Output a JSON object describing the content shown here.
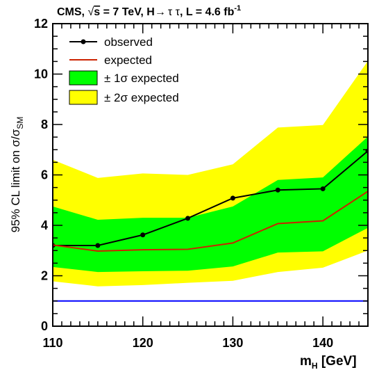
{
  "chart_data": {
    "type": "line",
    "title": {
      "prefix": "CMS, ",
      "sqrt_symbol": "√",
      "sqrt_var": "s",
      "energy": " = 7 TeV, H",
      "arrow": "→",
      "channel": "τ τ",
      "lumi": ", L = 4.6 fb",
      "lumi_exp": "-1"
    },
    "xlabel": {
      "main": "m",
      "sub": "H",
      "unit": " [GeV]"
    },
    "ylabel": {
      "main": "95% CL limit on σ/σ",
      "sub": "SM"
    },
    "xlim": [
      110,
      145
    ],
    "ylim": [
      0,
      12
    ],
    "xticks": [
      110,
      120,
      130,
      140
    ],
    "yticks": [
      0,
      2,
      4,
      6,
      8,
      10,
      12
    ],
    "x": [
      110,
      115,
      120,
      125,
      130,
      135,
      140,
      145
    ],
    "series": [
      {
        "name": "observed",
        "color": "#000000",
        "values": [
          3.2,
          3.2,
          3.62,
          4.28,
          5.08,
          5.4,
          5.45,
          6.95
        ]
      },
      {
        "name": "expected",
        "color": "#cc2200",
        "values": [
          3.22,
          2.98,
          3.03,
          3.05,
          3.3,
          4.07,
          4.18,
          5.35
        ]
      }
    ],
    "bands": [
      {
        "name": "± 2σ expected",
        "color": "#ffff00",
        "upper": [
          6.6,
          5.88,
          6.06,
          6.0,
          6.42,
          7.88,
          7.98,
          10.52
        ],
        "lower": [
          1.78,
          1.58,
          1.63,
          1.72,
          1.8,
          2.15,
          2.32,
          3.0
        ]
      },
      {
        "name": "± 1σ expected",
        "color": "#00ff00",
        "upper": [
          4.75,
          4.22,
          4.3,
          4.3,
          4.75,
          5.8,
          5.9,
          7.52
        ],
        "lower": [
          2.35,
          2.15,
          2.18,
          2.2,
          2.37,
          2.92,
          2.97,
          3.9
        ]
      }
    ],
    "reference": {
      "y": 1.0,
      "color": "#0000ff"
    },
    "legend": {
      "position": "top-left",
      "observed": "observed",
      "expected": "expected",
      "band1": "± 1σ expected",
      "band2": "± 2σ expected"
    },
    "grid": false
  }
}
